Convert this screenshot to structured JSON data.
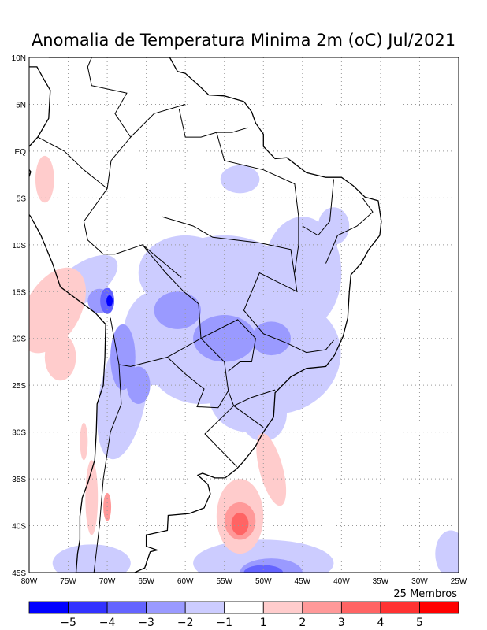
{
  "title": "Anomalia de Temperatura Minima 2m (oC) Jul/2021",
  "lat_labels": [
    "10N",
    "5N",
    "EQ",
    "5S",
    "10S",
    "15S",
    "20S",
    "25S",
    "30S",
    "35S",
    "40S",
    "45S"
  ],
  "lon_labels": [
    "80W",
    "75W",
    "70W",
    "65W",
    "60W",
    "55W",
    "50W",
    "45W",
    "40W",
    "35W",
    "30W",
    "25W"
  ],
  "members_label": "25 Membros",
  "colorbar": {
    "colors": [
      "#0000ff",
      "#3232ff",
      "#6464ff",
      "#9a9aff",
      "#ccccff",
      "#ffffff",
      "#ffcccc",
      "#ff9999",
      "#ff6464",
      "#ff3232",
      "#ff0000"
    ],
    "labels": [
      "−5",
      "−4",
      "−3",
      "−2",
      "−1",
      "1",
      "2",
      "3",
      "4",
      "5"
    ]
  }
}
